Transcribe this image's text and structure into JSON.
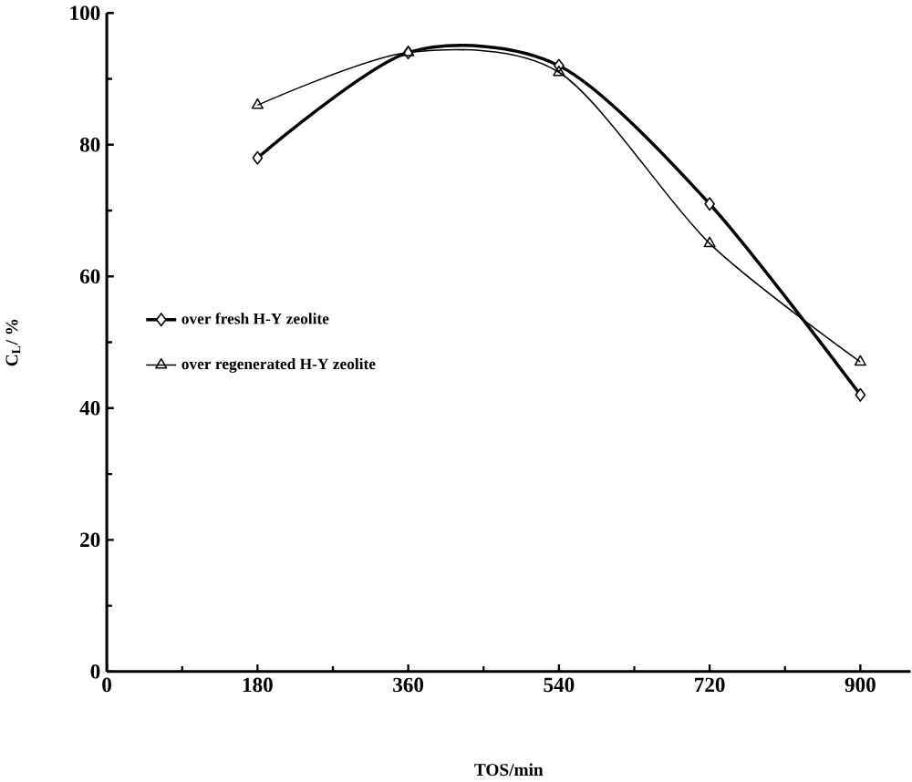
{
  "chart_data": {
    "type": "line",
    "xlabel": "TOS/min",
    "ylabel": "C$_{L}$/ %",
    "x": [
      180,
      360,
      540,
      720,
      900
    ],
    "series": [
      {
        "name": "over fresh H-Y zeolite",
        "color": "#000000",
        "values": [
          78,
          94,
          92,
          71,
          42
        ],
        "marker": "diamond"
      },
      {
        "name": "over regenerated H-Y zeolite",
        "color": "#000000",
        "values": [
          86,
          94,
          91,
          65,
          47
        ],
        "marker": "triangle"
      }
    ],
    "xlim": [
      0,
      960
    ],
    "xticks": [
      0,
      180,
      360,
      540,
      720,
      900
    ],
    "ylim": [
      0,
      100
    ],
    "yticks": [
      0,
      20,
      40,
      60,
      80,
      100
    ],
    "legend": "left",
    "grid": false,
    "line_style": "solid"
  }
}
